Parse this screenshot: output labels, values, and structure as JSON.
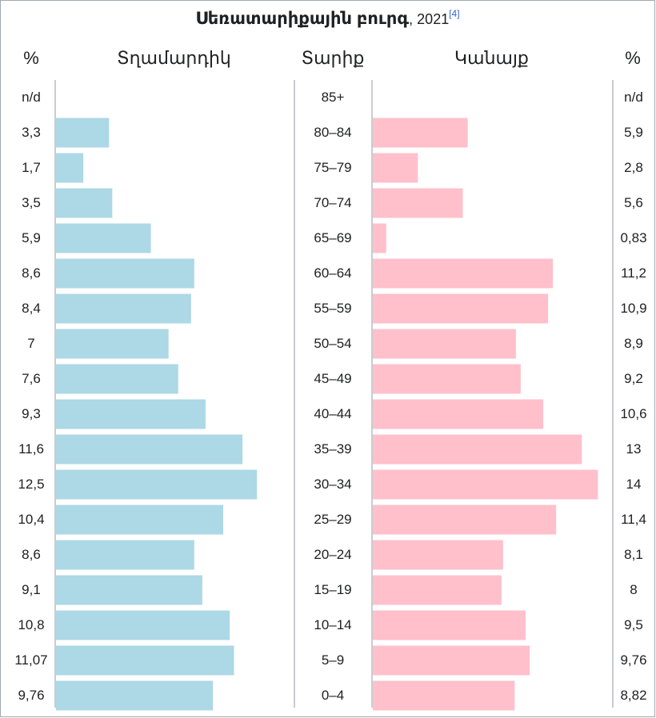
{
  "title": {
    "bold": "Սեռատարիքային բուրգ",
    "plain": ", 2021",
    "ref": "[4]"
  },
  "headers": {
    "left_pct": "%",
    "male": "Տղամարդիկ",
    "age": "Տարիք",
    "female": "Կանայք",
    "right_pct": "%"
  },
  "colors": {
    "male": "#add8e6",
    "female": "#ffc0cb",
    "border": "#a2a9b1",
    "ref_link": "#3366cc"
  },
  "chart_data": {
    "type": "bar",
    "orientation": "horizontal",
    "xlim": [
      0,
      14
    ],
    "categories": [
      "85+",
      "80–84",
      "75–79",
      "70–74",
      "65–69",
      "60–64",
      "55–59",
      "50–54",
      "45–49",
      "40–44",
      "35–39",
      "30–34",
      "25–29",
      "20–24",
      "15–19",
      "10–14",
      "5–9",
      "0–4"
    ],
    "series": [
      {
        "name": "Տղամարդիկ",
        "values": [
          null,
          3.3,
          1.7,
          3.5,
          5.9,
          8.6,
          8.4,
          7,
          7.6,
          9.3,
          11.6,
          12.5,
          10.4,
          8.6,
          9.1,
          10.8,
          11.07,
          9.76
        ]
      },
      {
        "name": "Կանայք",
        "values": [
          null,
          5.9,
          2.8,
          5.6,
          0.83,
          11.2,
          10.9,
          8.9,
          9.2,
          10.6,
          13,
          14,
          11.4,
          8.1,
          8,
          9.5,
          9.76,
          8.82
        ]
      }
    ],
    "labels_left": [
      "n/d",
      "3,3",
      "1,7",
      "3,5",
      "5,9",
      "8,6",
      "8,4",
      "7",
      "7,6",
      "9,3",
      "11,6",
      "12,5",
      "10,4",
      "8,6",
      "9,1",
      "10,8",
      "11,07",
      "9,76"
    ],
    "labels_right": [
      "n/d",
      "5,9",
      "2,8",
      "5,6",
      "0,83",
      "11,2",
      "10,9",
      "8,9",
      "9,2",
      "10,6",
      "13",
      "14",
      "11,4",
      "8,1",
      "8",
      "9,5",
      "9,76",
      "8,82"
    ]
  }
}
